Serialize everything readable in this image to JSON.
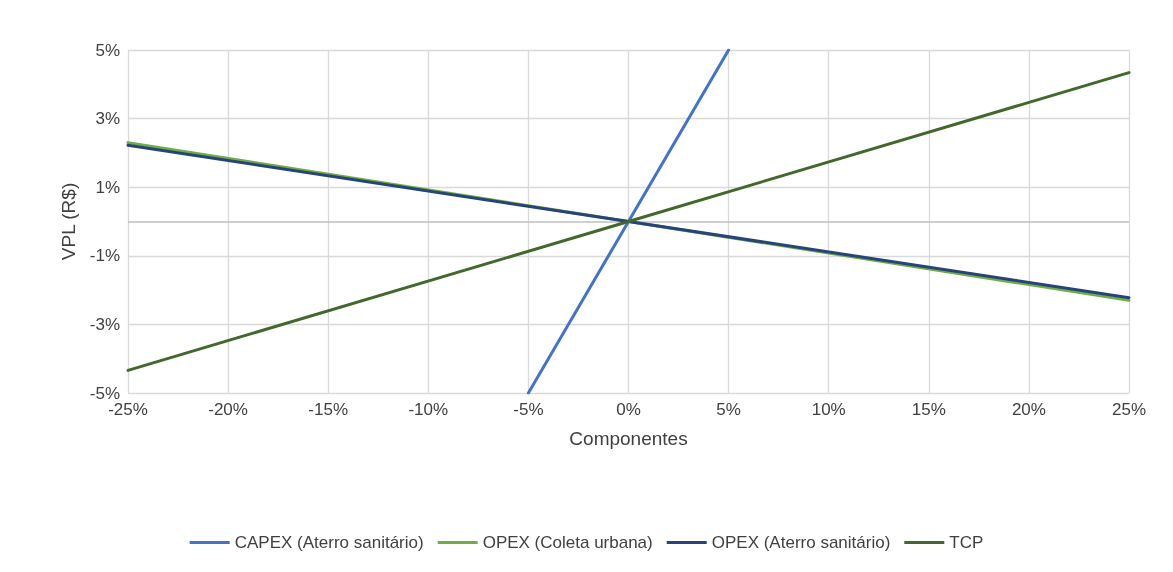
{
  "chart_data": {
    "type": "line",
    "xlabel": "Componentes",
    "ylabel": "VPL (R$)",
    "xlim": [
      -25,
      25
    ],
    "ylim": [
      -5,
      5
    ],
    "xticks": [
      {
        "value": -25,
        "label": "-25%"
      },
      {
        "value": -20,
        "label": "-20%"
      },
      {
        "value": -15,
        "label": "-15%"
      },
      {
        "value": -10,
        "label": "-10%"
      },
      {
        "value": -5,
        "label": "-5%"
      },
      {
        "value": 0,
        "label": "0%"
      },
      {
        "value": 5,
        "label": "5%"
      },
      {
        "value": 10,
        "label": "10%"
      },
      {
        "value": 15,
        "label": "15%"
      },
      {
        "value": 20,
        "label": "20%"
      },
      {
        "value": 25,
        "label": "25%"
      }
    ],
    "yticks": [
      {
        "value": -5,
        "label": "-5%"
      },
      {
        "value": -3,
        "label": "-3%"
      },
      {
        "value": -1,
        "label": "-1%"
      },
      {
        "value": 1,
        "label": "1%"
      },
      {
        "value": 3,
        "label": "3%"
      },
      {
        "value": 5,
        "label": "5%"
      }
    ],
    "series": [
      {
        "name": "CAPEX (Aterro sanitário)",
        "color": "#4472c4",
        "x": [
          -5,
          0,
          5
        ],
        "values": [
          -5,
          0,
          5
        ]
      },
      {
        "name": "OPEX (Coleta urbana)",
        "color": "#70ad47",
        "x": [
          -25,
          0,
          25
        ],
        "values": [
          2.3,
          0,
          -2.3
        ]
      },
      {
        "name": "OPEX (Aterro sanitário)",
        "color": "#264478",
        "x": [
          -25,
          0,
          25
        ],
        "values": [
          2.22,
          0,
          -2.22
        ]
      },
      {
        "name": "TCP",
        "color": "#43682b",
        "x": [
          -25,
          0,
          25
        ],
        "values": [
          -4.34,
          0,
          4.34
        ]
      }
    ],
    "ref_lines": [
      {
        "axis": "y",
        "value": 0,
        "color": "#bfbfbf"
      }
    ],
    "grid": true,
    "legend": "bottom",
    "marker": "none",
    "line_style": "solid"
  }
}
